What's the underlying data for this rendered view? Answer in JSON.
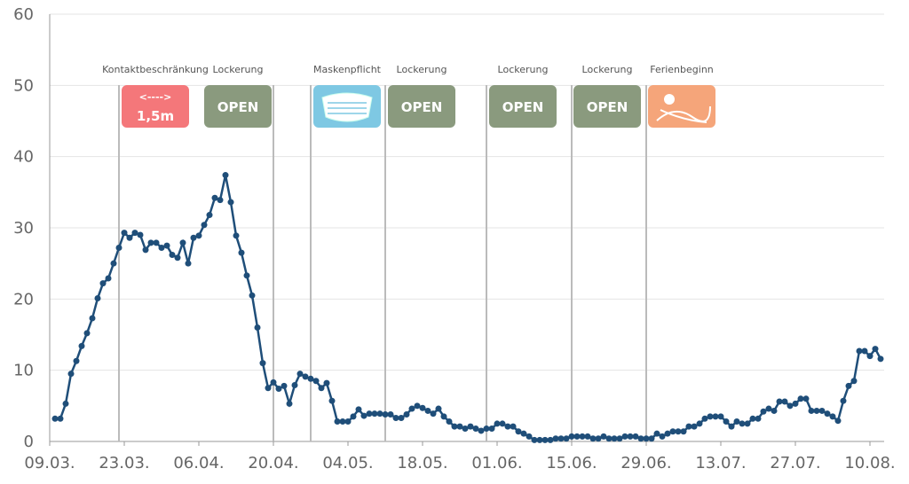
{
  "chart_data": {
    "type": "line",
    "categories": [
      "09.03.",
      null,
      null,
      null,
      null,
      null,
      null,
      null,
      null,
      null,
      null,
      null,
      null,
      null,
      "23.03.",
      null,
      null,
      null,
      null,
      null,
      null,
      null,
      null,
      null,
      null,
      null,
      null,
      null,
      "06.04.",
      null,
      null,
      null,
      null,
      null,
      null,
      null,
      null,
      null,
      null,
      null,
      null,
      null,
      "20.04.",
      null,
      null,
      null,
      null,
      null,
      null,
      null,
      null,
      null,
      null,
      null,
      null,
      null,
      "04.05.",
      null,
      null,
      null,
      null,
      null,
      null,
      null,
      null,
      null,
      null,
      null,
      null,
      null,
      "18.05.",
      null,
      null,
      null,
      null,
      null,
      null,
      null,
      null,
      null,
      null,
      null,
      null,
      null,
      "01.06.",
      null,
      null,
      null,
      null,
      null,
      null,
      null,
      null,
      null,
      null,
      null,
      null,
      null,
      "15.06.",
      null,
      null,
      null,
      null,
      null,
      null,
      null,
      null,
      null,
      null,
      null,
      null,
      null,
      "29.06.",
      null,
      null,
      null,
      null,
      null,
      null,
      null,
      null,
      null,
      null,
      null,
      null,
      null,
      "13.07.",
      null,
      null,
      null,
      null,
      null,
      null,
      null,
      null,
      null,
      null,
      null,
      null,
      null,
      "27.07.",
      null,
      null,
      null,
      null,
      null,
      null,
      null,
      null,
      null,
      null,
      null,
      null,
      null,
      "10.08.",
      null,
      null
    ],
    "series": [
      {
        "color": "#1f4e79",
        "values": [
          null,
          3.2,
          3.2,
          5.3,
          9.5,
          11.3,
          13.4,
          15.2,
          17.3,
          20.1,
          22.2,
          22.9,
          25.0,
          27.2,
          29.3,
          28.6,
          29.3,
          29.0,
          26.9,
          27.9,
          27.9,
          27.2,
          27.5,
          26.2,
          25.8,
          27.9,
          25.0,
          28.6,
          28.9,
          30.4,
          31.8,
          34.2,
          33.9,
          37.4,
          33.6,
          28.9,
          26.5,
          23.3,
          20.5,
          16.0,
          11.0,
          7.5,
          8.3,
          7.4,
          7.8,
          5.3,
          7.9,
          9.5,
          9.1,
          8.8,
          8.5,
          7.5,
          8.2,
          5.7,
          2.8,
          2.8,
          2.8,
          3.5,
          4.5,
          3.6,
          3.9,
          3.9,
          3.9,
          3.8,
          3.8,
          3.3,
          3.3,
          3.8,
          4.6,
          5.0,
          4.7,
          4.3,
          3.9,
          4.6,
          3.5,
          2.8,
          2.1,
          2.1,
          1.8,
          2.1,
          1.8,
          1.5,
          1.8,
          1.8,
          2.5,
          2.5,
          2.1,
          2.1,
          1.4,
          1.1,
          0.7,
          0.2,
          0.2,
          0.2,
          0.2,
          0.4,
          0.4,
          0.4,
          0.7,
          0.7,
          0.7,
          0.7,
          0.4,
          0.4,
          0.7,
          0.4,
          0.4,
          0.4,
          0.7,
          0.7,
          0.7,
          0.4,
          0.4,
          0.4,
          1.1,
          0.7,
          1.1,
          1.4,
          1.4,
          1.4,
          2.1,
          2.1,
          2.5,
          3.2,
          3.5,
          3.5,
          3.5,
          2.8,
          2.1,
          2.8,
          2.5,
          2.5,
          3.2,
          3.2,
          4.2,
          4.6,
          4.3,
          5.6,
          5.6,
          5.0,
          5.3,
          6.0,
          6.0,
          4.3,
          4.3,
          4.3,
          3.9,
          3.5,
          2.9,
          5.7,
          7.8,
          8.5,
          12.7,
          12.7,
          12.0,
          13.0,
          11.6
        ]
      }
    ],
    "ylim": [
      0,
      60
    ],
    "yticks": [
      0,
      10,
      20,
      30,
      40,
      50,
      60
    ],
    "grid": true,
    "annotations": [
      {
        "label": "Kontaktbeschränkung",
        "icon_arrow": "<---->",
        "icon_text": "1,5m",
        "color": "#f4777a"
      },
      {
        "label": "Lockerung",
        "icon_text": "OPEN",
        "color": "#8a9a7e"
      },
      {
        "label": "Maskenpflicht",
        "color": "#7ec8e3"
      },
      {
        "label": "Lockerung",
        "icon_text": "OPEN",
        "color": "#8a9a7e"
      },
      {
        "label": "Lockerung",
        "icon_text": "OPEN",
        "color": "#8a9a7e"
      },
      {
        "label": "Lockerung",
        "icon_text": "OPEN",
        "color": "#8a9a7e"
      },
      {
        "label": "Ferienbeginn",
        "color": "#f5a57a"
      }
    ]
  }
}
